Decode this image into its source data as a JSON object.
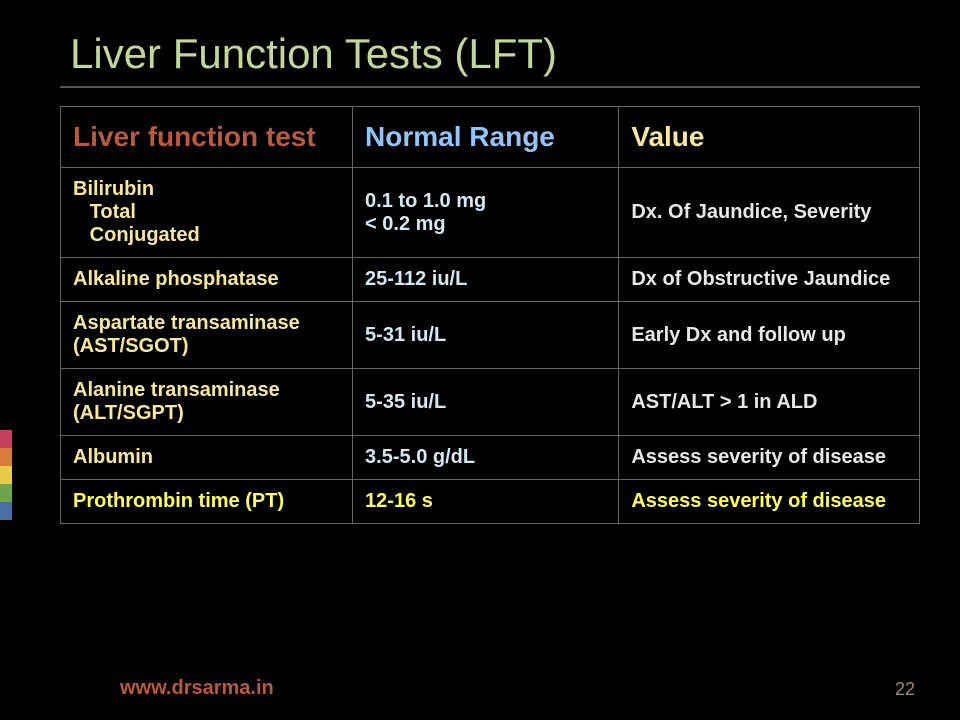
{
  "title": "Liver Function Tests (LFT)",
  "header": {
    "c0": "Liver function test",
    "c1": "Normal Range",
    "c2": "Value"
  },
  "rows": [
    {
      "type": "row",
      "c0_html": "Bilirubin\n   Total\n   Conjugated",
      "c1_html": "0.1 to 1.0 mg\n< 0.2 mg",
      "c2": "Dx. Of Jaundice, Severity"
    },
    {
      "type": "row",
      "c0": "Alkaline phosphatase",
      "c1": "25-112 iu/L",
      "c2": "Dx of Obstructive Jaundice"
    },
    {
      "type": "row",
      "c0": "Aspartate transaminase (AST/SGOT)",
      "c1": "5-31 iu/L",
      "c2": "Early Dx and follow up"
    },
    {
      "type": "row",
      "c0": "Alanine transaminase (ALT/SGPT)",
      "c1": "5-35 iu/L",
      "c2": "AST/ALT > 1 in ALD"
    },
    {
      "type": "row",
      "c0": "Albumin",
      "c1": "3.5-5.0 g/dL",
      "c2": "Assess severity of disease"
    },
    {
      "type": "row-yellow",
      "c0": "Prothrombin time (PT)",
      "c1": "12-16 s",
      "c2": "Assess severity of disease"
    }
  ],
  "accent_colors": [
    "#c6405f",
    "#d97b3a",
    "#e6cc4b",
    "#6fa34e",
    "#4a6fa3"
  ],
  "footer": "www.drsarma.in",
  "page_num": "22",
  "columns": {
    "col0_w": "34%",
    "col1_w": "31%",
    "col2_w": "35%"
  },
  "colors": {
    "background": "#000000",
    "title": "#c3d69b",
    "hr": "#555555",
    "border": "#666666",
    "hdr_c0": "#b85a3e",
    "hdr_c1": "#93c5fd",
    "hdr_c2": "#f9e79f",
    "row_c0": "#f9e79f",
    "row_c1": "#d4e8f7",
    "row_c2": "#e8e8e8",
    "row_yellow": "#ffff66",
    "footer": "#b85a3e",
    "pagenum": "#a08a6a"
  },
  "fonts": {
    "title_size": 42,
    "header_size": 28,
    "cell_size": 20,
    "footer_size": 20,
    "pagenum_size": 18
  }
}
